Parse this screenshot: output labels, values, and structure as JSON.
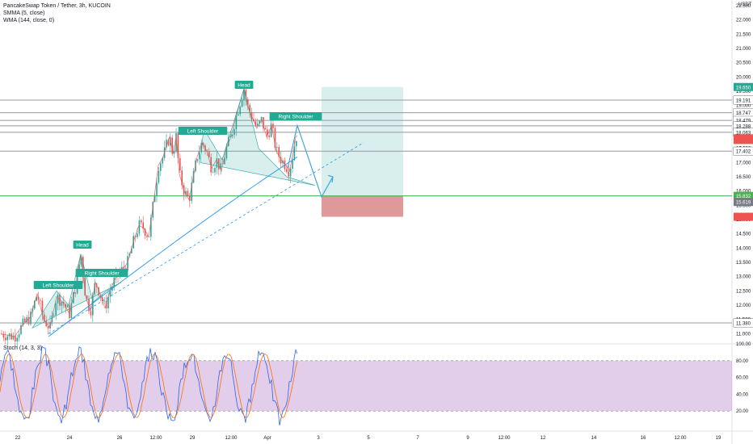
{
  "header": {
    "title": "PancakeSwap Token / Tether, 3h, KUCOIN",
    "indicator_smma": "SMMA (5, close)",
    "indicator_wma": "WMA (144, close, 0)",
    "indicator_stoch": "Stoch (14, 3, 3)",
    "currency": "USDT"
  },
  "chart_data": [
    {
      "type": "candlestick",
      "title": "PancakeSwap Token / Tether, 3h, KUCOIN",
      "y_ticks": [
        "22.500",
        "22.000",
        "21.500",
        "21.000",
        "20.500",
        "20.000",
        "19.500",
        "19.000",
        "18.500",
        "18.000",
        "17.500",
        "17.000",
        "16.500",
        "16.000",
        "15.500",
        "15.000",
        "14.500",
        "14.000",
        "13.500",
        "13.000",
        "12.500",
        "12.000",
        "11.500",
        "11.000"
      ],
      "x_ticks": [
        "22",
        "24",
        "26",
        "12:00",
        "29",
        "12:00",
        "Apr",
        "3",
        "5",
        "7",
        "9",
        "12:00",
        "12",
        "14",
        "16",
        "12:00",
        "19"
      ],
      "ylim": [
        10.7,
        22.7
      ],
      "price_levels": [
        {
          "label": "19.650",
          "value": 19.65,
          "color": "#26a69a"
        },
        {
          "label": "19.191",
          "value": 19.191,
          "color": "#131722"
        },
        {
          "label": "18.747",
          "value": 18.747,
          "color": "#131722"
        },
        {
          "label": "18.479",
          "value": 18.479,
          "color": "#131722"
        },
        {
          "label": "18.288",
          "value": 18.288,
          "color": "#131722"
        },
        {
          "label": "18.063",
          "value": 18.063,
          "color": "#131722"
        },
        {
          "label": "17.402",
          "value": 17.402,
          "color": "#131722"
        },
        {
          "label": "15.832",
          "value": 15.832,
          "color": "#4caf50"
        },
        {
          "label": "15.619",
          "value": 15.619,
          "color": "#787b86"
        },
        {
          "label": "11.380",
          "value": 11.38,
          "color": "#131722"
        }
      ],
      "annotations": [
        "Head",
        "Left Shoulder",
        "Right Shoulder",
        "Head",
        "Left Shoulder",
        "Right Shoulder"
      ],
      "series": [
        {
          "name": "SMMA (5, close)",
          "color": "#ef5350"
        },
        {
          "name": "WMA (144, close, 0)",
          "color": "#2962ff"
        }
      ],
      "position_box": {
        "target": 19.65,
        "entry": 15.832,
        "stop": 15.1
      }
    },
    {
      "type": "line",
      "title": "Stoch (14, 3, 3)",
      "y_ticks": [
        "100.00",
        "80.00",
        "60.00",
        "40.00",
        "20.00"
      ],
      "ylim": [
        0,
        100
      ],
      "band": [
        20,
        80
      ],
      "series": [
        {
          "name": "%K",
          "color": "#2962ff"
        },
        {
          "name": "%D",
          "color": "#ff6d00"
        }
      ]
    }
  ],
  "colors": {
    "up": "#26a69a",
    "down": "#ef5350",
    "target_zone": "#26a69a",
    "stop_zone": "#b71c1c",
    "stoch_band": "#7b1fa2",
    "pattern_line": "#42a5d8"
  }
}
